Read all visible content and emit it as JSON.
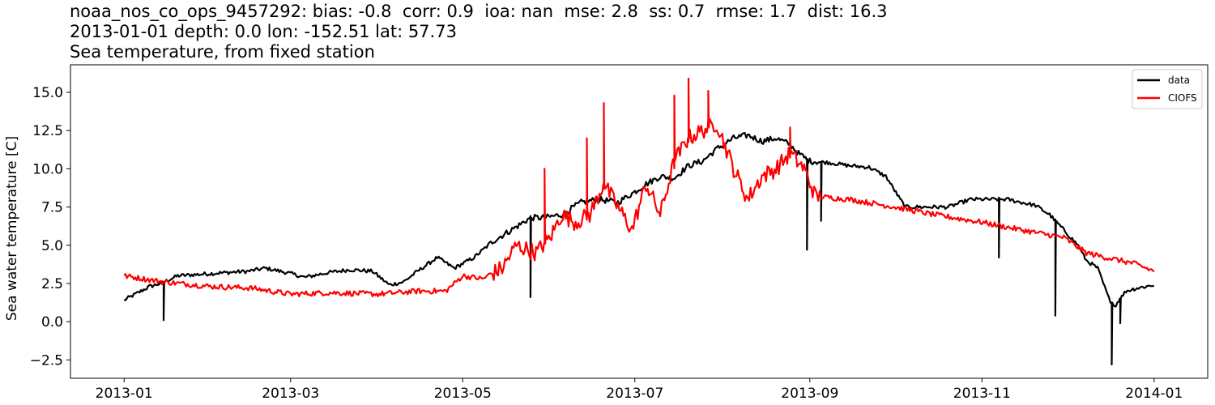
{
  "title": {
    "line1": "noaa_nos_co_ops_9457292: bias: -0.8  corr: 0.9  ioa: nan  mse: 2.8  ss: 0.7  rmse: 1.7  dist: 16.3",
    "line2": "2013-01-01 depth: 0.0 lon: -152.51 lat: 57.73",
    "line3": "Sea temperature, from fixed station"
  },
  "chart_data": {
    "type": "line",
    "title": "noaa_nos_co_ops_9457292: bias: -0.8  corr: 0.9  ioa: nan  mse: 2.8  ss: 0.7  rmse: 1.7  dist: 16.3\n2013-01-01 depth: 0.0 lon: -152.51 lat: 57.73\nSea temperature, from fixed station",
    "xlabel": "",
    "ylabel": "Sea water temperature [C]",
    "xlim": [
      "2012-12-13",
      "2014-01-20"
    ],
    "ylim": [
      -3.7,
      16.8
    ],
    "x_ticks": [
      "2013-01",
      "2013-03",
      "2013-05",
      "2013-07",
      "2013-09",
      "2013-11",
      "2014-01"
    ],
    "y_ticks": [
      "−2.5",
      "0.0",
      "2.5",
      "5.0",
      "7.5",
      "10.0",
      "12.5",
      "15.0"
    ],
    "y_tick_values": [
      -2.5,
      0.0,
      2.5,
      5.0,
      7.5,
      10.0,
      12.5,
      15.0
    ],
    "grid": false,
    "legend_position": "top-right",
    "series": [
      {
        "name": "data",
        "color": "#000000",
        "points": [
          [
            "2013-01-01",
            1.4
          ],
          [
            "2013-01-05",
            1.8
          ],
          [
            "2013-01-10",
            2.3
          ],
          [
            "2013-01-14",
            2.5
          ],
          [
            "2013-01-20",
            3.0
          ],
          [
            "2013-01-28",
            3.1
          ],
          [
            "2013-02-05",
            3.2
          ],
          [
            "2013-02-14",
            3.3
          ],
          [
            "2013-02-20",
            3.5
          ],
          [
            "2013-02-28",
            3.2
          ],
          [
            "2013-03-06",
            2.9
          ],
          [
            "2013-03-14",
            3.2
          ],
          [
            "2013-03-22",
            3.4
          ],
          [
            "2013-03-30",
            3.3
          ],
          [
            "2013-04-05",
            2.4
          ],
          [
            "2013-04-10",
            2.6
          ],
          [
            "2013-04-15",
            3.3
          ],
          [
            "2013-04-22",
            4.2
          ],
          [
            "2013-04-28",
            3.5
          ],
          [
            "2013-05-05",
            4.2
          ],
          [
            "2013-05-12",
            5.3
          ],
          [
            "2013-05-20",
            6.2
          ],
          [
            "2013-05-25",
            6.8
          ],
          [
            "2013-05-30",
            6.8
          ],
          [
            "2013-06-05",
            7.0
          ],
          [
            "2013-06-12",
            7.8
          ],
          [
            "2013-06-18",
            8.0
          ],
          [
            "2013-06-25",
            7.8
          ],
          [
            "2013-07-01",
            8.5
          ],
          [
            "2013-07-05",
            9.0
          ],
          [
            "2013-07-10",
            9.5
          ],
          [
            "2013-07-15",
            9.4
          ],
          [
            "2013-07-20",
            10.2
          ],
          [
            "2013-07-25",
            10.5
          ],
          [
            "2013-07-30",
            11.3
          ],
          [
            "2013-08-05",
            12.0
          ],
          [
            "2013-08-10",
            12.2
          ],
          [
            "2013-08-15",
            11.8
          ],
          [
            "2013-08-20",
            12.0
          ],
          [
            "2013-08-25",
            11.6
          ],
          [
            "2013-08-28",
            11.0
          ],
          [
            "2013-09-01",
            10.5
          ],
          [
            "2013-09-08",
            10.4
          ],
          [
            "2013-09-15",
            10.2
          ],
          [
            "2013-09-22",
            10.1
          ],
          [
            "2013-09-28",
            9.5
          ],
          [
            "2013-10-03",
            8.0
          ],
          [
            "2013-10-05",
            7.5
          ],
          [
            "2013-10-12",
            7.5
          ],
          [
            "2013-10-20",
            7.5
          ],
          [
            "2013-10-28",
            8.0
          ],
          [
            "2013-11-05",
            8.0
          ],
          [
            "2013-11-10",
            8.0
          ],
          [
            "2013-11-15",
            7.8
          ],
          [
            "2013-11-20",
            7.6
          ],
          [
            "2013-11-25",
            7.0
          ],
          [
            "2013-11-30",
            6.0
          ],
          [
            "2013-12-05",
            5.0
          ],
          [
            "2013-12-08",
            4.0
          ],
          [
            "2013-12-12",
            3.5
          ],
          [
            "2013-12-16",
            1.5
          ],
          [
            "2013-12-18",
            1.0
          ],
          [
            "2013-12-22",
            2.0
          ],
          [
            "2013-12-26",
            2.2
          ],
          [
            "2014-01-01",
            2.4
          ]
        ],
        "spikes": [
          [
            "2013-01-15",
            0.1
          ],
          [
            "2013-05-25",
            1.6
          ],
          [
            "2013-08-31",
            4.7
          ],
          [
            "2013-09-05",
            6.6
          ],
          [
            "2013-11-07",
            4.2
          ],
          [
            "2013-11-27",
            0.4
          ],
          [
            "2013-12-17",
            -2.8
          ],
          [
            "2013-12-20",
            -0.1
          ]
        ]
      },
      {
        "name": "CIOFS",
        "color": "#ff0000",
        "points": [
          [
            "2013-01-01",
            3.0
          ],
          [
            "2013-01-15",
            2.6
          ],
          [
            "2013-02-01",
            2.3
          ],
          [
            "2013-02-15",
            2.2
          ],
          [
            "2013-03-01",
            1.8
          ],
          [
            "2013-03-15",
            1.9
          ],
          [
            "2013-04-01",
            1.8
          ],
          [
            "2013-04-15",
            2.0
          ],
          [
            "2013-04-25",
            2.0
          ],
          [
            "2013-05-01",
            3.0
          ],
          [
            "2013-05-08",
            2.8
          ],
          [
            "2013-05-15",
            3.5
          ],
          [
            "2013-05-20",
            5.0
          ],
          [
            "2013-05-27",
            4.5
          ],
          [
            "2013-06-01",
            5.5
          ],
          [
            "2013-06-05",
            7.0
          ],
          [
            "2013-06-10",
            6.5
          ],
          [
            "2013-06-15",
            7.0
          ],
          [
            "2013-06-20",
            9.0
          ],
          [
            "2013-06-25",
            7.5
          ],
          [
            "2013-06-30",
            6.0
          ],
          [
            "2013-07-05",
            9.0
          ],
          [
            "2013-07-10",
            7.0
          ],
          [
            "2013-07-15",
            10.5
          ],
          [
            "2013-07-20",
            12.0
          ],
          [
            "2013-07-25",
            12.5
          ],
          [
            "2013-07-30",
            13.0
          ],
          [
            "2013-08-05",
            10.0
          ],
          [
            "2013-08-10",
            8.0
          ],
          [
            "2013-08-15",
            9.5
          ],
          [
            "2013-08-20",
            10.0
          ],
          [
            "2013-08-25",
            11.0
          ],
          [
            "2013-08-30",
            10.0
          ],
          [
            "2013-09-03",
            8.2
          ],
          [
            "2013-09-15",
            8.0
          ],
          [
            "2013-10-01",
            7.5
          ],
          [
            "2013-10-15",
            7.0
          ],
          [
            "2013-11-01",
            6.5
          ],
          [
            "2013-11-15",
            6.0
          ],
          [
            "2013-11-30",
            5.5
          ],
          [
            "2013-12-08",
            4.5
          ],
          [
            "2013-12-15",
            4.2
          ],
          [
            "2013-12-25",
            3.8
          ],
          [
            "2014-01-01",
            3.3
          ]
        ],
        "peaks": [
          [
            "2013-06-20",
            14.3
          ],
          [
            "2013-07-15",
            14.8
          ],
          [
            "2013-07-20",
            15.9
          ],
          [
            "2013-07-27",
            15.1
          ],
          [
            "2013-05-30",
            10.0
          ],
          [
            "2013-06-14",
            12.0
          ],
          [
            "2013-08-25",
            12.7
          ]
        ]
      }
    ]
  }
}
